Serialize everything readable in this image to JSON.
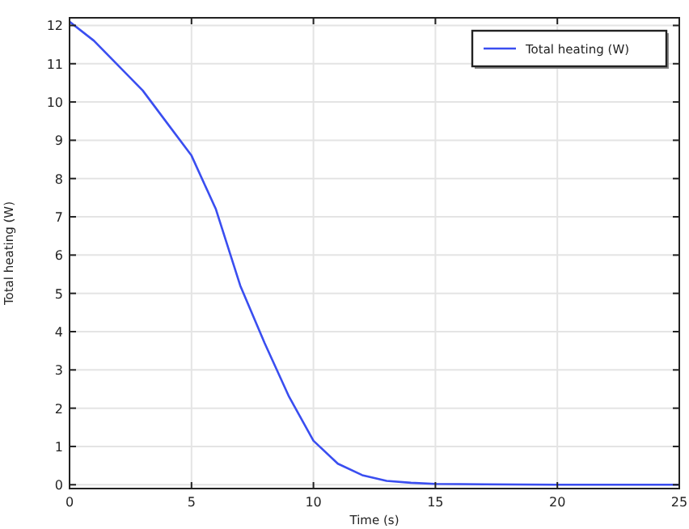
{
  "chart_data": {
    "type": "line",
    "xlabel": "Time (s)",
    "ylabel": "Total heating (W)",
    "x": [
      0,
      1,
      2,
      3,
      4,
      5,
      6,
      7,
      8,
      9,
      10,
      11,
      12,
      13,
      14,
      15,
      17,
      20,
      25
    ],
    "series": [
      {
        "name": "Total heating (W)",
        "color": "#3a4ef0",
        "values": [
          12.1,
          11.6,
          10.95,
          10.3,
          9.45,
          8.6,
          7.2,
          5.2,
          3.7,
          2.3,
          1.15,
          0.55,
          0.25,
          0.1,
          0.05,
          0.02,
          0.01,
          0,
          0
        ]
      }
    ],
    "xlim": [
      0,
      25
    ],
    "ylim": [
      -0.1,
      12.2
    ],
    "xticks": [
      0,
      5,
      10,
      15,
      20,
      25
    ],
    "yticks": [
      0,
      1,
      2,
      3,
      4,
      5,
      6,
      7,
      8,
      9,
      10,
      11,
      12
    ],
    "grid": true,
    "legend": "top right"
  }
}
